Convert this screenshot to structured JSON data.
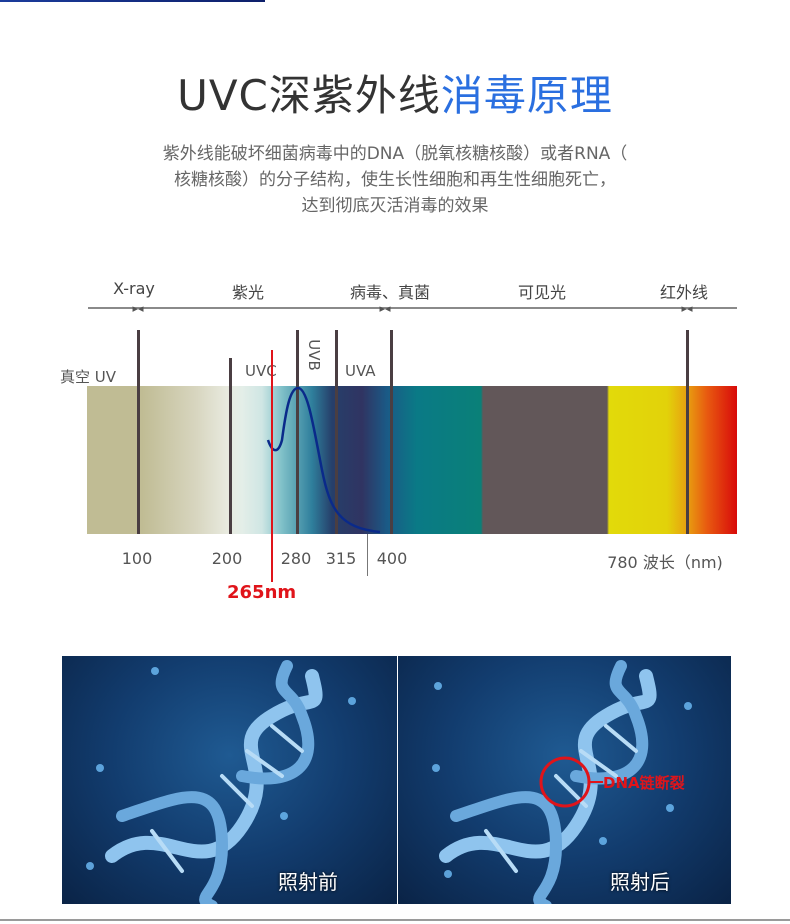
{
  "header": {
    "title_dark": "UVC深紫外线",
    "title_blue": "消毒原理",
    "title_blue_color": "#2a6fe0"
  },
  "description": [
    "紫外线能破坏细菌病毒中的DNA（脱氧核糖核酸）或者RNA（",
    "核糖核酸）的分子结构，使生长性细胞和再生性细胞死亡，",
    "达到彻底灭活消毒的效果"
  ],
  "spectrum": {
    "regions": [
      "X-ray",
      "紫光",
      "病毒、真菌",
      "可见光",
      "红外线"
    ],
    "vacuum_uv": "真空 UV",
    "uvc": "UVC",
    "uvb": "UVB",
    "uva": "UVA",
    "ticks": [
      "100",
      "200",
      "280",
      "315",
      "400",
      "780 波长（nm)"
    ],
    "marker": "265nm",
    "marker_color": "#e0141a"
  },
  "dna": {
    "before": "照射前",
    "after": "照射后",
    "break_label": "DNA链断裂"
  }
}
